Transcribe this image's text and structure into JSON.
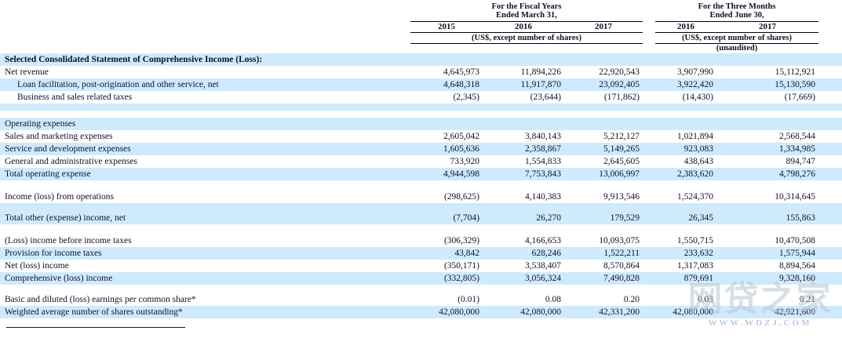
{
  "colors": {
    "row_highlight": "#cfeafc",
    "text": "#10102a",
    "watermark_cjk": "#b9c6d2",
    "watermark_url": "#a9bdd6"
  },
  "header": {
    "fiscal_group": {
      "title_line1": "For the Fiscal Years",
      "title_line2": "Ended March 31,",
      "years": [
        "2015",
        "2016",
        "2017"
      ],
      "unit_note": "(US$, except number of shares)"
    },
    "three_months_group": {
      "title_line1": "For the Three Months",
      "title_line2": "Ended June 30,",
      "years": [
        "2016",
        "2017"
      ],
      "unit_note": "(US$, except number of shares)",
      "audit_note": "(unaudited)"
    }
  },
  "table": {
    "rows": [
      {
        "label": "Selected Consolidated Statement of Comprehensive Income (Loss):",
        "bold": true,
        "highlight": true,
        "values": [
          "",
          "",
          "",
          "",
          ""
        ]
      },
      {
        "label": "Net revenue",
        "values": [
          "4,645,973",
          "11,894,226",
          "22,920,543",
          "3,907,990",
          "15,112,921"
        ]
      },
      {
        "label": "Loan facilitation, post-origination and other service, net",
        "indent": true,
        "highlight": true,
        "values": [
          "4,648,318",
          "11,917,870",
          "23,092,405",
          "3,922,420",
          "15,130,590"
        ]
      },
      {
        "label": "Business and sales related taxes",
        "indent": true,
        "values": [
          "(2,345)",
          "(23,644)",
          "(171,862)",
          "(14,430)",
          "(17,669)"
        ]
      },
      {
        "spacer": true,
        "highlight": true,
        "h": 9
      },
      {
        "spacer": true,
        "h": 9
      },
      {
        "label": "Operating expenses",
        "highlight": true,
        "values": [
          "",
          "",
          "",
          "",
          ""
        ]
      },
      {
        "label": "Sales and marketing expenses",
        "values": [
          "2,605,042",
          "3,840,143",
          "5,212,127",
          "1,021,894",
          "2,568,544"
        ]
      },
      {
        "label": "Service and development expenses",
        "highlight": true,
        "values": [
          "1,605,636",
          "2,358,867",
          "5,149,265",
          "923,083",
          "1,334,985"
        ]
      },
      {
        "label": "General and administrative expenses",
        "values": [
          "733,920",
          "1,554,833",
          "2,645,605",
          "438,643",
          "894,747"
        ]
      },
      {
        "label": "Total operating expense",
        "highlight": true,
        "values": [
          "4,944,598",
          "7,753,843",
          "13,006,997",
          "2,383,620",
          "4,798,276"
        ]
      },
      {
        "spacer": true,
        "h": 13
      },
      {
        "label": "Income (loss) from operations",
        "values": [
          "(298,625)",
          "4,140,383",
          "9,913,546",
          "1,524,370",
          "10,314,645"
        ]
      },
      {
        "spacer": true,
        "highlight": true,
        "h": 11
      },
      {
        "label": "Total other (expense) income, net",
        "highlight": true,
        "values": [
          "(7,704)",
          "26,270",
          "179,529",
          "26,345",
          "155,863"
        ]
      },
      {
        "spacer": true,
        "h": 13
      },
      {
        "label": "(Loss) income before income taxes",
        "values": [
          "(306,329)",
          "4,166,653",
          "10,093,075",
          "1,550,715",
          "10,470,508"
        ]
      },
      {
        "label": "Provision for income taxes",
        "highlight": true,
        "values": [
          "43,842",
          "628,246",
          "1,522,211",
          "233,632",
          "1,575,944"
        ]
      },
      {
        "label": "Net (loss) income",
        "values": [
          "(350,171)",
          "3,538,407",
          "8,570,864",
          "1,317,083",
          "8,894,564"
        ]
      },
      {
        "label": "Comprehensive (loss) income",
        "highlight": true,
        "values": [
          "(332,805)",
          "3,056,324",
          "7,490,828",
          "879,691",
          "9,328,160"
        ]
      },
      {
        "spacer": true,
        "h": 11
      },
      {
        "label": "Basic and diluted (loss) earnings per common share*",
        "values": [
          "(0.01)",
          "0.08",
          "0.20",
          "0.03",
          "0.21"
        ]
      },
      {
        "label": "Weighted average number of shares outstanding*",
        "highlight": true,
        "values": [
          "42,080,000",
          "42,080,000",
          "42,331,200",
          "42,080,000",
          "42,921,600"
        ]
      }
    ]
  },
  "watermark": {
    "cjk": "网贷之家",
    "url": "WWW.WDZJ.COM"
  }
}
